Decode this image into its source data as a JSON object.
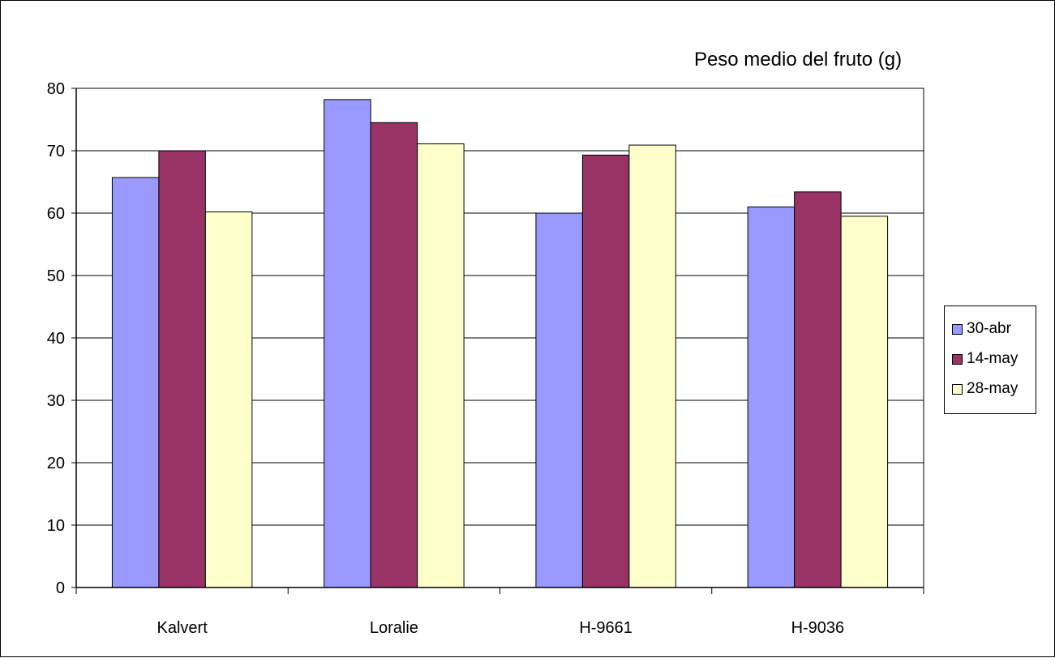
{
  "chart_data": {
    "type": "bar",
    "title": "Peso medio del fruto (g)",
    "xlabel": "",
    "ylabel": "",
    "categories": [
      "Kalvert",
      "Loralie",
      "H-9661",
      "H-9036"
    ],
    "series": [
      {
        "name": "30-abr",
        "color": "#9999ff",
        "values": [
          65.7,
          78.2,
          60.0,
          61.0
        ]
      },
      {
        "name": "14-may",
        "color": "#993366",
        "values": [
          70.0,
          74.5,
          69.3,
          63.4
        ]
      },
      {
        "name": "28-may",
        "color": "#ffffcc",
        "values": [
          60.2,
          71.1,
          70.9,
          59.5
        ]
      }
    ],
    "ylim": [
      0,
      80
    ],
    "yticks": [
      0,
      10,
      20,
      30,
      40,
      50,
      60,
      70,
      80
    ],
    "grid": true,
    "plot_background": "#ffffff",
    "legend_position": "right"
  }
}
